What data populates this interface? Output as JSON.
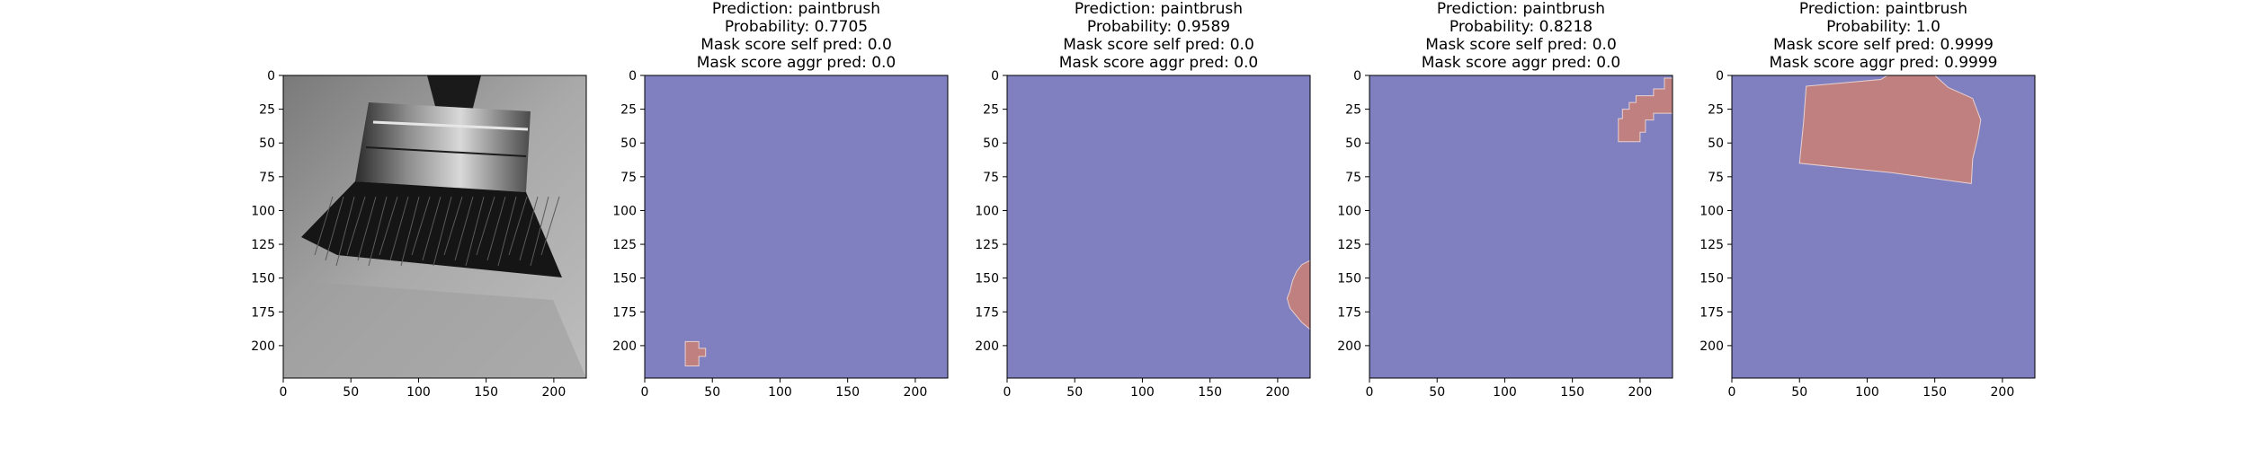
{
  "figure": {
    "panels": [
      {
        "id": "input-image",
        "kind": "image",
        "title_lines": []
      },
      {
        "id": "mask-1",
        "kind": "mask",
        "title_lines": [
          "Prediction: paintbrush",
          "Probability: 0.7705",
          "Mask score self pred: 0.0",
          "Mask score aggr pred: 0.0"
        ]
      },
      {
        "id": "mask-2",
        "kind": "mask",
        "title_lines": [
          "Prediction: paintbrush",
          "Probability: 0.9589",
          "Mask score self pred: 0.0",
          "Mask score aggr pred: 0.0"
        ]
      },
      {
        "id": "mask-3",
        "kind": "mask",
        "title_lines": [
          "Prediction: paintbrush",
          "Probability: 0.8218",
          "Mask score self pred: 0.0",
          "Mask score aggr pred: 0.0"
        ]
      },
      {
        "id": "mask-4",
        "kind": "mask",
        "title_lines": [
          "Prediction: paintbrush",
          "Probability: 1.0",
          "Mask score self pred: 0.9999",
          "Mask score aggr pred: 0.9999"
        ]
      }
    ]
  },
  "colors": {
    "mask_background": "#8080c0",
    "mask_region": "#c08080",
    "axis": "#000000",
    "image_bg": "#8c8c8c"
  },
  "chart_data": [
    {
      "type": "heatmap",
      "title": "",
      "xlim": [
        0,
        224
      ],
      "ylim": [
        224,
        0
      ],
      "xticks": [
        0,
        50,
        100,
        150,
        200
      ],
      "yticks": [
        0,
        25,
        50,
        75,
        100,
        125,
        150,
        175,
        200
      ],
      "content": "grayscale photo of a paintbrush"
    },
    {
      "type": "heatmap",
      "title": "Prediction: paintbrush / Probability: 0.7705 / Mask score self pred: 0.0 / Mask score aggr pred: 0.0",
      "xlim": [
        0,
        224
      ],
      "ylim": [
        224,
        0
      ],
      "xticks": [
        0,
        50,
        100,
        150,
        200
      ],
      "yticks": [
        0,
        25,
        50,
        75,
        100,
        125,
        150,
        175,
        200
      ],
      "mask_regions": [
        [
          [
            30,
            197
          ],
          [
            40,
            197
          ],
          [
            40,
            202
          ],
          [
            45,
            202
          ],
          [
            45,
            208
          ],
          [
            40,
            208
          ],
          [
            40,
            215
          ],
          [
            30,
            215
          ]
        ]
      ]
    },
    {
      "type": "heatmap",
      "title": "Prediction: paintbrush / Probability: 0.9589 / Mask score self pred: 0.0 / Mask score aggr pred: 0.0",
      "xlim": [
        0,
        224
      ],
      "ylim": [
        224,
        0
      ],
      "xticks": [
        0,
        50,
        100,
        150,
        200
      ],
      "yticks": [
        0,
        25,
        50,
        75,
        100,
        125,
        150,
        175,
        200
      ],
      "mask_regions": [
        [
          [
            224,
            137
          ],
          [
            218,
            140
          ],
          [
            214,
            145
          ],
          [
            211,
            152
          ],
          [
            209,
            160
          ],
          [
            207,
            165
          ],
          [
            209,
            172
          ],
          [
            213,
            177
          ],
          [
            218,
            183
          ],
          [
            224,
            188
          ]
        ]
      ]
    },
    {
      "type": "heatmap",
      "title": "Prediction: paintbrush / Probability: 0.8218 / Mask score self pred: 0.0 / Mask score aggr pred: 0.0",
      "xlim": [
        0,
        224
      ],
      "ylim": [
        224,
        0
      ],
      "xticks": [
        0,
        50,
        100,
        150,
        200
      ],
      "yticks": [
        0,
        25,
        50,
        75,
        100,
        125,
        150,
        175,
        200
      ],
      "mask_regions": [
        [
          [
            224,
            2
          ],
          [
            218,
            2
          ],
          [
            218,
            10
          ],
          [
            210,
            10
          ],
          [
            210,
            15
          ],
          [
            197,
            15
          ],
          [
            197,
            20
          ],
          [
            192,
            20
          ],
          [
            192,
            25
          ],
          [
            187,
            25
          ],
          [
            187,
            32
          ],
          [
            184,
            32
          ],
          [
            184,
            49
          ],
          [
            200,
            49
          ],
          [
            200,
            42
          ],
          [
            204,
            42
          ],
          [
            204,
            33
          ],
          [
            210,
            33
          ],
          [
            210,
            28
          ],
          [
            224,
            28
          ]
        ]
      ]
    },
    {
      "type": "heatmap",
      "title": "Prediction: paintbrush / Probability: 1.0 / Mask score self pred: 0.9999 / Mask score aggr pred: 0.9999",
      "xlim": [
        0,
        224
      ],
      "ylim": [
        224,
        0
      ],
      "xticks": [
        0,
        50,
        100,
        150,
        200
      ],
      "yticks": [
        0,
        25,
        50,
        75,
        100,
        125,
        150,
        175,
        200
      ],
      "mask_regions": [
        [
          [
            55,
            8
          ],
          [
            110,
            3
          ],
          [
            115,
            0
          ],
          [
            150,
            0
          ],
          [
            160,
            9
          ],
          [
            178,
            17
          ],
          [
            184,
            33
          ],
          [
            182,
            45
          ],
          [
            178,
            62
          ],
          [
            177,
            80
          ],
          [
            118,
            72
          ],
          [
            50,
            65
          ],
          [
            53,
            35
          ]
        ]
      ]
    }
  ]
}
